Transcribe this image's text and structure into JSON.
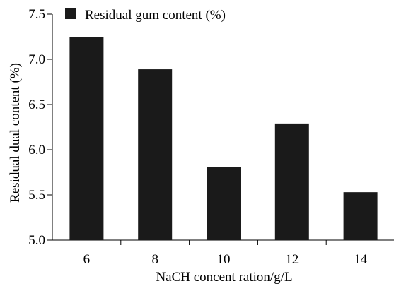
{
  "chart_data": {
    "type": "bar",
    "categories": [
      "6",
      "8",
      "10",
      "12",
      "14"
    ],
    "series": [
      {
        "name": "Residual gum content (%)",
        "values": [
          7.25,
          6.89,
          5.81,
          6.29,
          5.53
        ],
        "color": "#1a1a1a"
      }
    ],
    "xlabel": "NaCH concent ration/g/L",
    "ylabel": "Residual dual content (%)",
    "ylim": [
      5.0,
      7.5
    ],
    "yticks": [
      "5.0",
      "5.5",
      "6.0",
      "6.5",
      "7.0",
      "7.5"
    ],
    "grid": false,
    "legend_position": "top-left"
  }
}
